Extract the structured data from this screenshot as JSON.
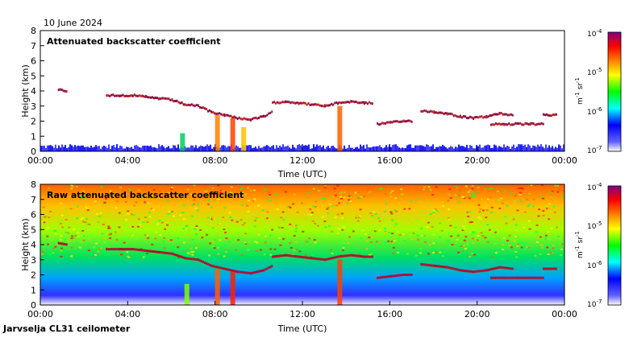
{
  "header": {
    "date": "10 June 2024"
  },
  "footer": {
    "site": "Jarvselja CL31 ceilometer"
  },
  "colorbar": {
    "colors": [
      "#ffffff",
      "#0000ff",
      "#00ffff",
      "#00ff00",
      "#ffff00",
      "#ff8000",
      "#ff0000",
      "#800080"
    ],
    "labels": [
      "10-4",
      "10-5",
      "10-6",
      "10-7"
    ],
    "unit": "m-1 sr-1"
  },
  "chart_data": [
    {
      "type": "heatmap",
      "title": "Attenuated backscatter coefficient",
      "xlabel": "Time (UTC)",
      "ylabel": "Height (km)",
      "xlim": [
        0,
        24
      ],
      "ylim": [
        0,
        8
      ],
      "xticks": [
        "00:00",
        "04:00",
        "08:00",
        "12:00",
        "16:00",
        "20:00",
        "00:00"
      ],
      "yticks": [
        "0",
        "1",
        "2",
        "3",
        "4",
        "5",
        "6",
        "7",
        "8"
      ],
      "cloud_layers": [
        {
          "t": [
            0.8,
            1.2
          ],
          "h": [
            4.1,
            4.0
          ]
        },
        {
          "t": [
            3.0,
            3.6,
            4.2,
            4.8,
            5.4,
            6.0,
            6.6,
            7.2,
            7.8,
            8.4,
            9.0,
            9.6,
            10.2,
            10.6
          ],
          "h": [
            3.7,
            3.7,
            3.7,
            3.6,
            3.5,
            3.4,
            3.1,
            3.0,
            2.6,
            2.4,
            2.2,
            2.1,
            2.3,
            2.6
          ]
        },
        {
          "t": [
            10.6,
            11.2,
            11.8,
            12.4,
            13.0,
            13.6,
            14.2,
            14.8,
            15.2
          ],
          "h": [
            3.2,
            3.3,
            3.2,
            3.1,
            3.0,
            3.2,
            3.3,
            3.2,
            3.2
          ]
        },
        {
          "t": [
            15.4,
            16.0,
            16.6,
            17.0
          ],
          "h": [
            1.8,
            1.9,
            2.0,
            2.0
          ]
        },
        {
          "t": [
            17.4,
            18.0,
            18.6,
            19.2,
            19.8,
            20.4,
            21.0,
            21.6
          ],
          "h": [
            2.7,
            2.6,
            2.5,
            2.3,
            2.2,
            2.3,
            2.5,
            2.4
          ]
        },
        {
          "t": [
            20.6,
            21.2,
            21.8,
            22.4,
            23.0
          ],
          "h": [
            1.8,
            1.8,
            1.8,
            1.8,
            1.8
          ]
        },
        {
          "t": [
            23.0,
            23.6
          ],
          "h": [
            2.4,
            2.4
          ]
        }
      ]
    },
    {
      "type": "heatmap",
      "title": "Raw attenuated backscatter coefficient",
      "xlabel": "Time (UTC)",
      "ylabel": "Height (km)",
      "xlim": [
        0,
        24
      ],
      "ylim": [
        0,
        8
      ],
      "xticks": [
        "00:00",
        "04:00",
        "08:00",
        "12:00",
        "16:00",
        "20:00",
        "00:00"
      ],
      "yticks": [
        "0",
        "1",
        "2",
        "3",
        "4",
        "5",
        "6",
        "7",
        "8"
      ]
    }
  ]
}
